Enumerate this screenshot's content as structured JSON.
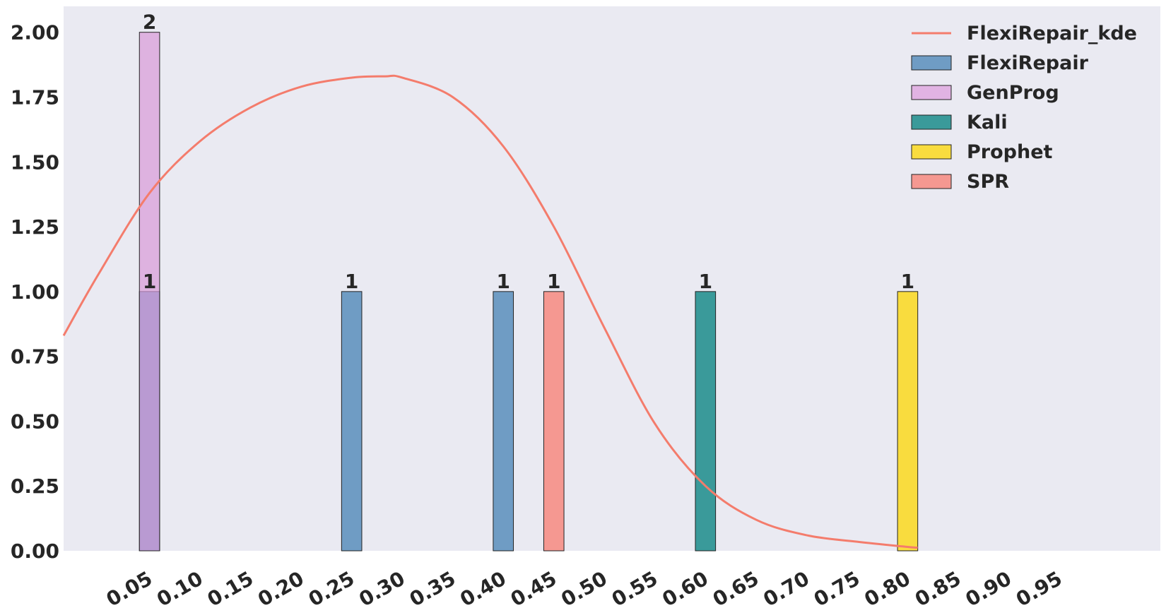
{
  "chart_data": {
    "type": "bar",
    "title": "",
    "xlabel": "",
    "ylabel": "",
    "ylim": [
      0,
      2.1
    ],
    "xlim": [
      -0.035,
      1.05
    ],
    "grid": false,
    "legend_position": "top-right",
    "background": "#eaeaf2",
    "x_ticks": [
      0.05,
      0.1,
      0.15,
      0.2,
      0.25,
      0.3,
      0.35,
      0.4,
      0.45,
      0.5,
      0.55,
      0.6,
      0.65,
      0.7,
      0.75,
      0.8,
      0.85,
      0.9,
      0.95
    ],
    "x_tick_labels": [
      "0.05",
      "0.10",
      "0.15",
      "0.20",
      "0.25",
      "0.30",
      "0.35",
      "0.40",
      "0.45",
      "0.50",
      "0.55",
      "0.60",
      "0.65",
      "0.70",
      "0.75",
      "0.80",
      "0.85",
      "0.90",
      "0.95"
    ],
    "y_ticks": [
      0,
      0.25,
      0.5,
      0.75,
      1.0,
      1.25,
      1.5,
      1.75,
      2.0
    ],
    "y_tick_labels": [
      "0.00",
      "0.25",
      "0.50",
      "0.75",
      "1.00",
      "1.25",
      "1.50",
      "1.75",
      "2.00"
    ],
    "bar_width": 0.02,
    "series": [
      {
        "name": "FlexiRepair",
        "color": "#6f9cc4",
        "bars": [
          {
            "x": 0.05,
            "value": 1,
            "label": "1"
          },
          {
            "x": 0.25,
            "value": 1,
            "label": "1"
          },
          {
            "x": 0.4,
            "value": 1,
            "label": "1"
          }
        ]
      },
      {
        "name": "GenProg",
        "color": "#d99ad9",
        "opacity": 0.7,
        "bars": [
          {
            "x": 0.05,
            "value": 2,
            "label": "2"
          }
        ]
      },
      {
        "name": "Kali",
        "color": "#3a9a9a",
        "bars": [
          {
            "x": 0.6,
            "value": 1,
            "label": "1"
          }
        ]
      },
      {
        "name": "Prophet",
        "color": "#f9dc3e",
        "bars": [
          {
            "x": 0.8,
            "value": 1,
            "label": "1"
          }
        ]
      },
      {
        "name": "SPR",
        "color": "#f59891",
        "bars": [
          {
            "x": 0.45,
            "value": 1,
            "label": "1"
          }
        ]
      }
    ],
    "kde": {
      "name": "FlexiRepair_kde",
      "color": "#f47c6c",
      "x": [
        -0.035,
        0.0,
        0.05,
        0.1,
        0.15,
        0.2,
        0.25,
        0.283,
        0.3,
        0.35,
        0.4,
        0.45,
        0.5,
        0.55,
        0.6,
        0.65,
        0.7,
        0.75,
        0.8,
        0.81
      ],
      "y": [
        0.83,
        1.07,
        1.38,
        1.58,
        1.71,
        1.79,
        1.825,
        1.83,
        1.825,
        1.75,
        1.56,
        1.25,
        0.86,
        0.49,
        0.25,
        0.12,
        0.06,
        0.035,
        0.015,
        0.012
      ]
    },
    "legend": [
      {
        "name": "FlexiRepair_kde",
        "kind": "line",
        "color": "#f47c6c"
      },
      {
        "name": "FlexiRepair",
        "kind": "patch",
        "color": "#6f9cc4"
      },
      {
        "name": "GenProg",
        "kind": "patch",
        "color": "#e1b3e3"
      },
      {
        "name": "Kali",
        "kind": "patch",
        "color": "#3a9a9a"
      },
      {
        "name": "Prophet",
        "kind": "patch",
        "color": "#f9dc3e"
      },
      {
        "name": "SPR",
        "kind": "patch",
        "color": "#f59891"
      }
    ]
  }
}
